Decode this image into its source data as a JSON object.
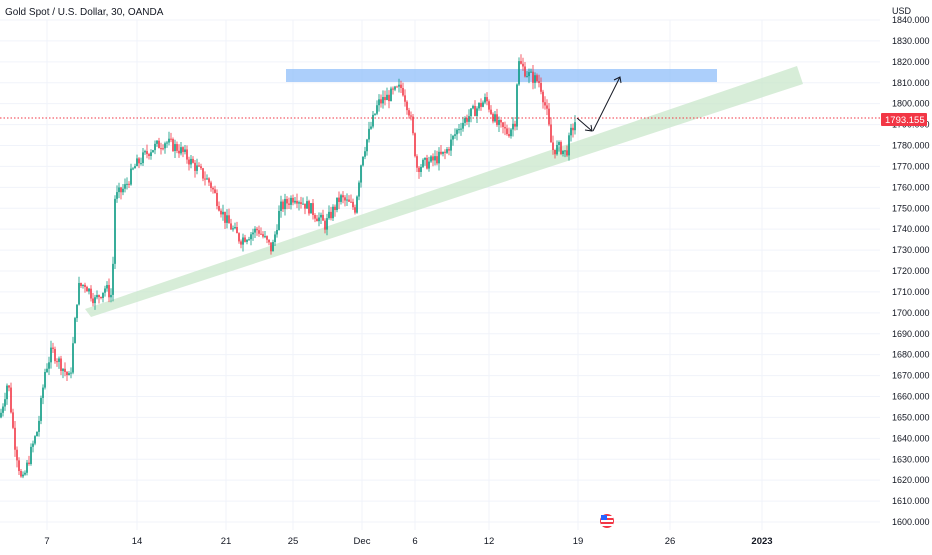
{
  "header": {
    "symbol_title": "Gold Spot / U.S. Dollar, 30, OANDA"
  },
  "price_axis": {
    "currency": "USD",
    "ticks": [
      "1840.000",
      "1830.000",
      "1820.000",
      "1810.000",
      "1800.000",
      "1790.000",
      "1780.000",
      "1770.000",
      "1760.000",
      "1750.000",
      "1740.000",
      "1730.000",
      "1720.000",
      "1710.000",
      "1700.000",
      "1690.000",
      "1680.000",
      "1670.000",
      "1660.000",
      "1650.000",
      "1640.000",
      "1630.000",
      "1620.000",
      "1610.000",
      "1600.000"
    ],
    "last_price_label": "1793.155"
  },
  "time_axis": {
    "ticks": [
      "7",
      "14",
      "21",
      "25",
      "Dec",
      "6",
      "12",
      "19",
      "26",
      "2023"
    ]
  },
  "colors": {
    "up": "#089981",
    "down": "#f23645",
    "resistance_zone": "#90bff9",
    "support_channel": "#c8e6c9",
    "last_price_line": "#f23645",
    "grid": "#f0f3fa",
    "text": "#131722"
  },
  "icons": {
    "event_marker": "us-flag-icon"
  },
  "chart_data": {
    "type": "candlestick",
    "title": "Gold Spot / U.S. Dollar, 30, OANDA",
    "ylabel": "USD",
    "ylim": [
      1597,
      1847
    ],
    "grid": true,
    "price_path": [
      {
        "x": 0,
        "y": 1650
      },
      {
        "x": 8,
        "y": 1668
      },
      {
        "x": 14,
        "y": 1640
      },
      {
        "x": 22,
        "y": 1618
      },
      {
        "x": 30,
        "y": 1632
      },
      {
        "x": 38,
        "y": 1645
      },
      {
        "x": 45,
        "y": 1672
      },
      {
        "x": 52,
        "y": 1682
      },
      {
        "x": 60,
        "y": 1676
      },
      {
        "x": 70,
        "y": 1668
      },
      {
        "x": 78,
        "y": 1712
      },
      {
        "x": 85,
        "y": 1714
      },
      {
        "x": 95,
        "y": 1706
      },
      {
        "x": 105,
        "y": 1712
      },
      {
        "x": 112,
        "y": 1708
      },
      {
        "x": 115,
        "y": 1755
      },
      {
        "x": 125,
        "y": 1760
      },
      {
        "x": 135,
        "y": 1770
      },
      {
        "x": 150,
        "y": 1778
      },
      {
        "x": 165,
        "y": 1782
      },
      {
        "x": 180,
        "y": 1778
      },
      {
        "x": 195,
        "y": 1770
      },
      {
        "x": 210,
        "y": 1762
      },
      {
        "x": 225,
        "y": 1745
      },
      {
        "x": 240,
        "y": 1735
      },
      {
        "x": 258,
        "y": 1740
      },
      {
        "x": 272,
        "y": 1730
      },
      {
        "x": 280,
        "y": 1750
      },
      {
        "x": 295,
        "y": 1756
      },
      {
        "x": 310,
        "y": 1750
      },
      {
        "x": 325,
        "y": 1742
      },
      {
        "x": 340,
        "y": 1755
      },
      {
        "x": 355,
        "y": 1750
      },
      {
        "x": 362,
        "y": 1775
      },
      {
        "x": 378,
        "y": 1800
      },
      {
        "x": 393,
        "y": 1805
      },
      {
        "x": 402,
        "y": 1808
      },
      {
        "x": 410,
        "y": 1795
      },
      {
        "x": 417,
        "y": 1770
      },
      {
        "x": 430,
        "y": 1772
      },
      {
        "x": 445,
        "y": 1776
      },
      {
        "x": 460,
        "y": 1790
      },
      {
        "x": 475,
        "y": 1797
      },
      {
        "x": 486,
        "y": 1802
      },
      {
        "x": 497,
        "y": 1790
      },
      {
        "x": 508,
        "y": 1786
      },
      {
        "x": 515,
        "y": 1792
      },
      {
        "x": 518,
        "y": 1820
      },
      {
        "x": 528,
        "y": 1814
      },
      {
        "x": 540,
        "y": 1810
      },
      {
        "x": 547,
        "y": 1795
      },
      {
        "x": 552,
        "y": 1778
      },
      {
        "x": 560,
        "y": 1779
      },
      {
        "x": 566,
        "y": 1776
      },
      {
        "x": 571,
        "y": 1786
      },
      {
        "x": 576,
        "y": 1793
      }
    ],
    "resistance_zone": {
      "from": 1811,
      "to": 1817
    },
    "last_price": 1793.155
  }
}
